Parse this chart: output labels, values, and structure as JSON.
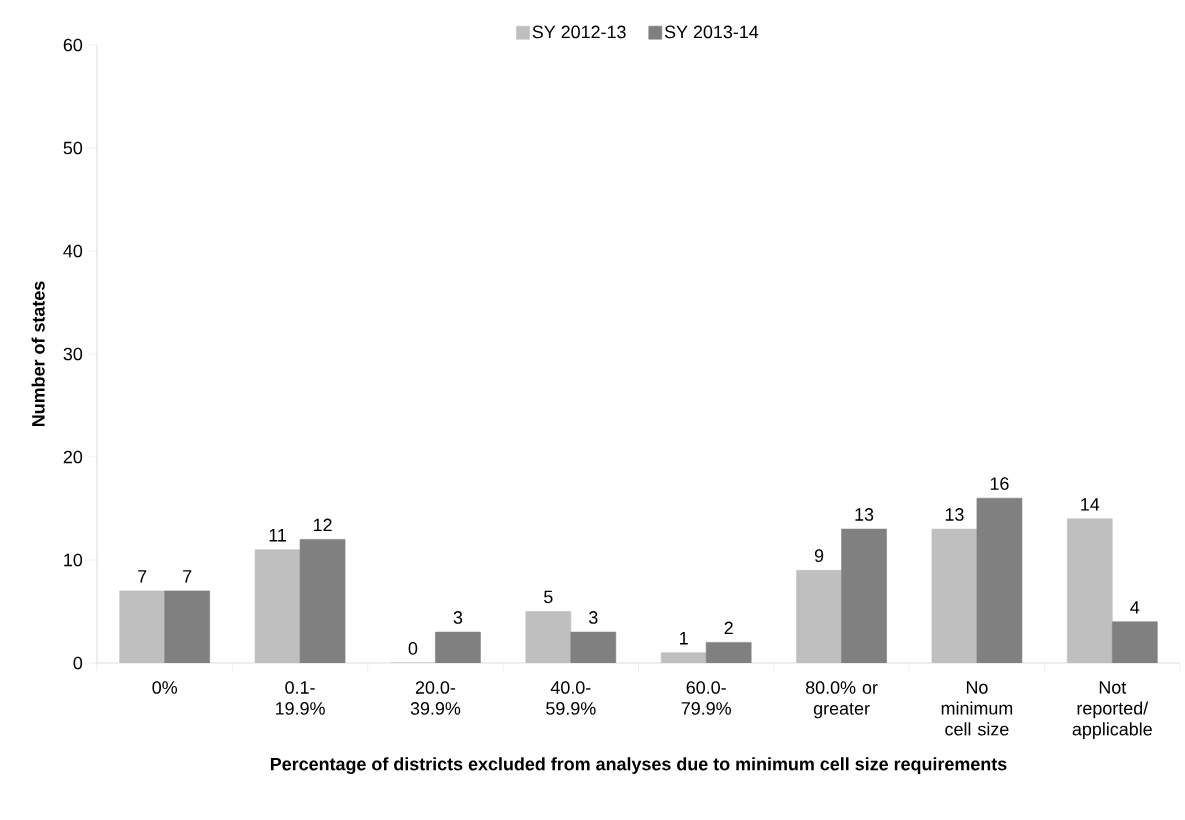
{
  "chart_data": {
    "type": "bar",
    "categories": [
      "0%",
      "0.1- 19.9%",
      "20.0- 39.9%",
      "40.0- 59.9%",
      "60.0- 79.9%",
      "80.0% or greater",
      "No minimum cell size",
      "Not reported/ applicable"
    ],
    "series": [
      {
        "name": "SY 2012-13",
        "color": "#bfbfbf",
        "values": [
          7,
          11,
          0,
          5,
          1,
          9,
          13,
          14
        ]
      },
      {
        "name": "SY 2013-14",
        "color": "#808080",
        "values": [
          7,
          12,
          3,
          3,
          2,
          13,
          16,
          4
        ]
      }
    ],
    "xlabel": "Percentage of districts excluded from analyses due to minimum cell size requirements",
    "ylabel": "Number of states",
    "ylim": [
      0,
      60
    ],
    "yticks": [
      0,
      10,
      20,
      30,
      40,
      50,
      60
    ],
    "data_labels": true,
    "legend": "top",
    "grid": false
  }
}
